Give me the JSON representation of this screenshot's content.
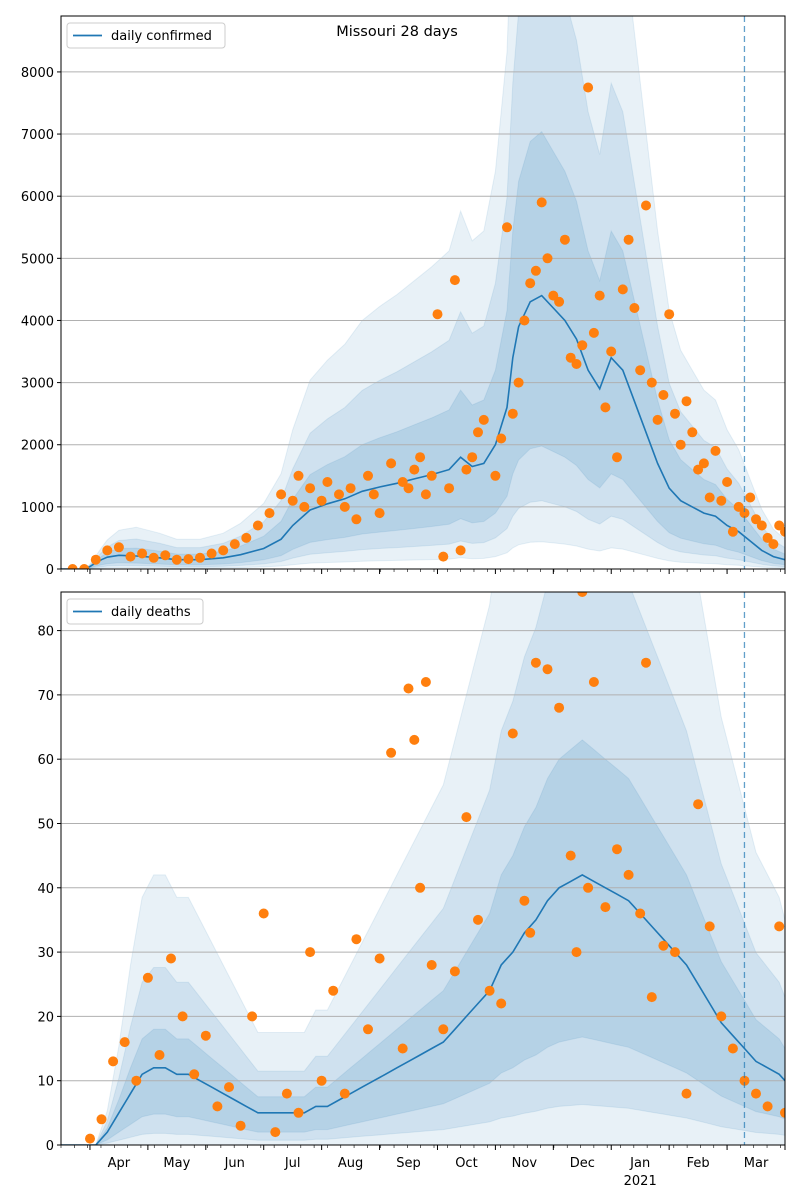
{
  "figure": {
    "title": "Missouri 28 days"
  },
  "colors": {
    "line": "#1f77b4",
    "points": "#ff7f0e",
    "band": "#1f77b4",
    "grid": "#b0b0b0",
    "marker": "#1f77b4"
  },
  "x_axis": {
    "month_labels": [
      "Apr",
      "May",
      "Jun",
      "Jul",
      "Aug",
      "Sep",
      "Oct",
      "Nov",
      "Dec",
      "Jan",
      "Feb",
      "Mar"
    ],
    "year_label": "2021"
  },
  "chart_data": [
    {
      "type": "line",
      "name": "confirmed",
      "legend": "daily confirmed",
      "ylim": [
        0,
        8900
      ],
      "yticks": [
        "0",
        "1000",
        "2000",
        "3000",
        "4000",
        "5000",
        "6000",
        "7000",
        "8000"
      ],
      "grid": "horizontal",
      "legend_position": "top-left",
      "forecast_start_month": 11.8,
      "x_month": [
        0,
        0.2,
        0.4,
        0.5,
        0.6,
        0.7,
        0.8,
        1.0,
        1.3,
        1.7,
        2.0,
        2.4,
        2.8,
        3.1,
        3.5,
        3.8,
        4.0,
        4.3,
        4.6,
        4.9,
        5.2,
        5.5,
        5.8,
        6.1,
        6.4,
        6.7,
        6.9,
        7.1,
        7.3,
        7.5,
        7.7,
        7.8,
        7.9,
        8.1,
        8.3,
        8.5,
        8.7,
        8.9,
        9.1,
        9.3,
        9.5,
        9.7,
        9.9,
        10.1,
        10.3,
        10.5,
        10.7,
        10.9,
        11.1,
        11.3,
        11.5,
        11.7,
        11.9,
        12.1,
        12.3,
        12.5
      ],
      "y_line": [
        0,
        0,
        0,
        40,
        100,
        150,
        190,
        220,
        210,
        180,
        150,
        150,
        180,
        230,
        330,
        480,
        700,
        950,
        1050,
        1130,
        1250,
        1320,
        1380,
        1450,
        1520,
        1600,
        1800,
        1650,
        1700,
        2000,
        2600,
        3400,
        3900,
        4300,
        4400,
        4200,
        4000,
        3700,
        3200,
        2900,
        3400,
        3200,
        2700,
        2200,
        1700,
        1300,
        1100,
        1000,
        900,
        850,
        700,
        600,
        450,
        300,
        200,
        150
      ],
      "bands": [
        {
          "lower_scale": 0.45,
          "upper_scale": 1.6
        },
        {
          "lower_scale": 0.25,
          "upper_scale": 2.3
        },
        {
          "lower_scale": 0.1,
          "upper_scale": 3.2
        }
      ],
      "scatter_x": [
        0.2,
        0.4,
        0.6,
        0.8,
        1.0,
        1.2,
        1.4,
        1.6,
        1.8,
        2.0,
        2.2,
        2.4,
        2.6,
        2.8,
        3.0,
        3.2,
        3.4,
        3.6,
        3.8,
        4.0,
        4.1,
        4.2,
        4.3,
        4.5,
        4.6,
        4.8,
        4.9,
        5.0,
        5.1,
        5.3,
        5.4,
        5.5,
        5.7,
        5.9,
        6.0,
        6.1,
        6.2,
        6.3,
        6.4,
        6.5,
        6.6,
        6.7,
        6.8,
        6.9,
        7.0,
        7.1,
        7.2,
        7.3,
        7.5,
        7.6,
        7.7,
        7.8,
        7.9,
        8.0,
        8.1,
        8.2,
        8.3,
        8.4,
        8.5,
        8.6,
        8.7,
        8.8,
        8.9,
        9.0,
        9.1,
        9.2,
        9.3,
        9.4,
        9.5,
        9.6,
        9.7,
        9.8,
        9.9,
        10.0,
        10.1,
        10.2,
        10.3,
        10.4,
        10.5,
        10.6,
        10.7,
        10.8,
        10.9,
        11.0,
        11.1,
        11.2,
        11.3,
        11.4,
        11.5,
        11.6,
        11.7,
        11.8,
        11.9,
        12.0,
        12.1,
        12.2,
        12.3,
        12.4,
        12.5
      ],
      "scatter_y": [
        0,
        0,
        150,
        300,
        350,
        200,
        250,
        180,
        220,
        150,
        160,
        180,
        250,
        300,
        400,
        500,
        700,
        900,
        1200,
        1100,
        1500,
        1000,
        1300,
        1100,
        1400,
        1200,
        1000,
        1300,
        800,
        1500,
        1200,
        900,
        1700,
        1400,
        1300,
        1600,
        1800,
        1200,
        1500,
        4100,
        200,
        1300,
        4650,
        300,
        1600,
        1800,
        2200,
        2400,
        1500,
        2100,
        5500,
        2500,
        3000,
        4000,
        4600,
        4800,
        5900,
        5000,
        4400,
        4300,
        5300,
        3400,
        3300,
        3600,
        7750,
        3800,
        4400,
        2600,
        3500,
        1800,
        4500,
        5300,
        4200,
        3200,
        5850,
        3000,
        2400,
        2800,
        4100,
        2500,
        2000,
        2700,
        2200,
        1600,
        1700,
        1150,
        1900,
        1100,
        1400,
        600,
        1000,
        900,
        1150,
        800,
        700,
        500,
        400,
        700,
        600
      ]
    },
    {
      "type": "line",
      "name": "deaths",
      "legend": "daily deaths",
      "ylim": [
        0,
        86
      ],
      "yticks": [
        "0",
        "10",
        "20",
        "30",
        "40",
        "50",
        "60",
        "70",
        "80"
      ],
      "grid": "horizontal",
      "legend_position": "top-left",
      "forecast_start_month": 11.8,
      "x_month": [
        0,
        0.4,
        0.6,
        0.8,
        1.0,
        1.2,
        1.4,
        1.6,
        1.8,
        2.0,
        2.2,
        2.4,
        2.6,
        2.8,
        3.0,
        3.2,
        3.4,
        3.6,
        3.8,
        4.0,
        4.2,
        4.4,
        4.6,
        4.8,
        5.0,
        5.2,
        5.4,
        5.6,
        5.8,
        6.0,
        6.2,
        6.4,
        6.6,
        6.8,
        7.0,
        7.2,
        7.4,
        7.6,
        7.8,
        8.0,
        8.2,
        8.4,
        8.6,
        8.8,
        9.0,
        9.2,
        9.4,
        9.6,
        9.8,
        10.0,
        10.2,
        10.4,
        10.6,
        10.8,
        11.0,
        11.2,
        11.4,
        11.6,
        11.8,
        12.0,
        12.2,
        12.4,
        12.5
      ],
      "y_line": [
        0,
        0,
        0,
        2,
        5,
        8,
        11,
        12,
        12,
        11,
        11,
        10,
        9,
        8,
        7,
        6,
        5,
        5,
        5,
        5,
        5,
        6,
        6,
        7,
        8,
        9,
        10,
        11,
        12,
        13,
        14,
        15,
        16,
        18,
        20,
        22,
        24,
        28,
        30,
        33,
        35,
        38,
        40,
        41,
        42,
        41,
        40,
        39,
        38,
        36,
        34,
        32,
        30,
        28,
        25,
        22,
        19,
        17,
        15,
        13,
        12,
        11,
        10
      ],
      "bands": [
        {
          "lower_scale": 0.4,
          "upper_scale": 1.5
        },
        {
          "lower_scale": 0.15,
          "upper_scale": 2.3
        },
        {
          "lower_scale": 0.0,
          "upper_scale": 3.5
        }
      ],
      "scatter_x": [
        0.5,
        0.7,
        0.9,
        1.1,
        1.3,
        1.5,
        1.7,
        1.9,
        2.1,
        2.3,
        2.5,
        2.7,
        2.9,
        3.1,
        3.3,
        3.5,
        3.7,
        3.9,
        4.1,
        4.3,
        4.5,
        4.7,
        4.9,
        5.1,
        5.3,
        5.5,
        5.7,
        5.9,
        6.0,
        6.1,
        6.2,
        6.3,
        6.4,
        6.6,
        6.8,
        7.0,
        7.2,
        7.4,
        7.6,
        7.8,
        8.0,
        8.1,
        8.2,
        8.4,
        8.6,
        8.8,
        8.9,
        9.0,
        9.1,
        9.2,
        9.4,
        9.6,
        9.8,
        10.0,
        10.1,
        10.2,
        10.4,
        10.6,
        10.8,
        11.0,
        11.2,
        11.4,
        11.6,
        11.8,
        12.0,
        12.2,
        12.4,
        12.5
      ],
      "scatter_y": [
        1,
        4,
        13,
        16,
        10,
        26,
        14,
        29,
        20,
        11,
        17,
        6,
        9,
        3,
        20,
        36,
        2,
        8,
        5,
        30,
        10,
        24,
        8,
        32,
        18,
        29,
        61,
        15,
        71,
        63,
        40,
        72,
        28,
        18,
        27,
        51,
        35,
        24,
        22,
        64,
        38,
        33,
        75,
        74,
        68,
        45,
        30,
        86,
        40,
        72,
        37,
        46,
        42,
        36,
        75,
        23,
        31,
        30,
        8,
        53,
        34,
        20,
        15,
        10,
        8,
        6,
        34,
        5
      ]
    }
  ]
}
